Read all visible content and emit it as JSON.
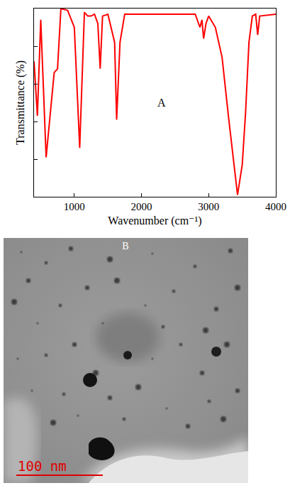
{
  "chart_data": {
    "type": "line",
    "x_label": "Wavenumber (cm⁻¹)",
    "y_label": "Transmittance (%)",
    "x": [
      400,
      450,
      500,
      580,
      700,
      750,
      800,
      900,
      1000,
      1080,
      1150,
      1200,
      1250,
      1300,
      1350,
      1385,
      1420,
      1500,
      1600,
      1630,
      1680,
      1750,
      2800,
      2850,
      2870,
      2900,
      2925,
      2960,
      3000,
      3100,
      3200,
      3300,
      3430,
      3500,
      3550,
      3600,
      3650,
      3700,
      3730,
      3760,
      4000
    ],
    "values": [
      72,
      43,
      94,
      21,
      66,
      68,
      100,
      99,
      90,
      26,
      98,
      96,
      96,
      97,
      92,
      68,
      96,
      97,
      82,
      41,
      82,
      97,
      97,
      92,
      90,
      94,
      84,
      92,
      96,
      90,
      74,
      41,
      1,
      17,
      45,
      82,
      96,
      97,
      86,
      96,
      97
    ],
    "color": "#ff0000",
    "xlim": [
      400,
      4000
    ],
    "xticks": [
      1000,
      2000,
      3000,
      4000
    ],
    "ylim": [
      0,
      100
    ],
    "yticks": [
      0,
      20,
      40,
      60,
      80,
      100
    ],
    "tick_labels": "x",
    "grid": false,
    "annotations": [
      {
        "text": "A",
        "x": 2300,
        "y": 50
      }
    ]
  },
  "image": {
    "label": "B",
    "scale_bar": "100 nm"
  }
}
